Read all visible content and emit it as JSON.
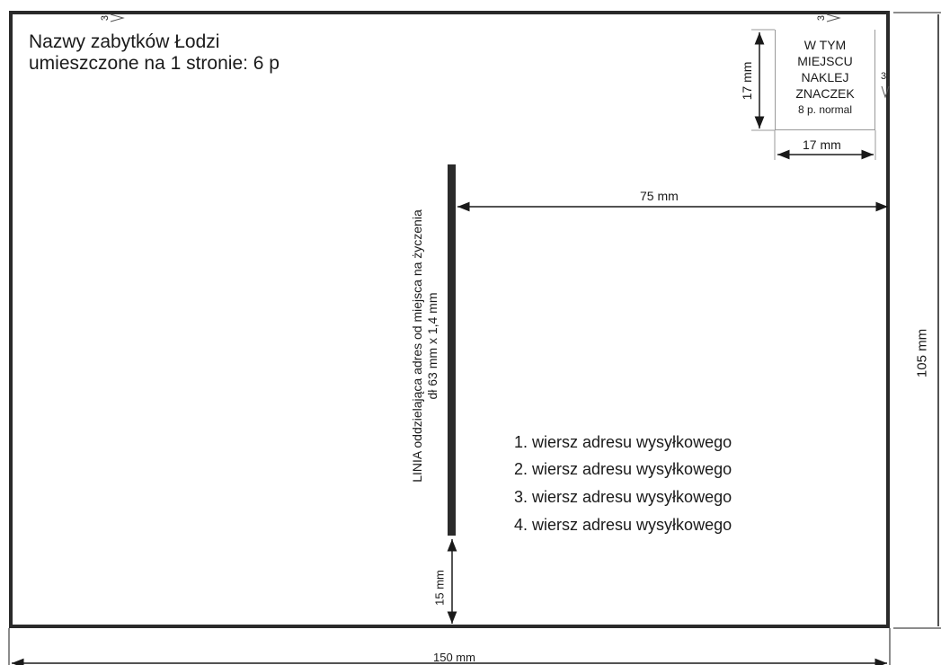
{
  "header": {
    "line1": "Nazwy zabytków Łodzi",
    "line2": "umieszczone na 1 stronie: 6 p"
  },
  "stamp": {
    "line1": "W TYM",
    "line2": "MIEJSCU",
    "line3": "NAKLEJ",
    "line4": "ZNACZEK",
    "line5": "8 p. normal",
    "width_label": "17 mm",
    "height_label": "17 mm",
    "corner_mark": "3"
  },
  "divider": {
    "label_line1": "LINIA oddzielająca adres od miejsca na życzenia",
    "label_line2": "dł 63 mm x 1,4 mm",
    "bottom_gap_label": "15 mm"
  },
  "dimensions": {
    "address_width": "75 mm",
    "card_height": "105 mm",
    "card_width": "150 mm"
  },
  "markers": {
    "top_left": "3",
    "top_right": "3"
  },
  "address": {
    "lines": [
      "1. wiersz adresu wysyłkowego",
      "2. wiersz adresu wysyłkowego",
      "3. wiersz adresu wysyłkowego",
      "4. wiersz adresu wysyłkowego"
    ]
  }
}
